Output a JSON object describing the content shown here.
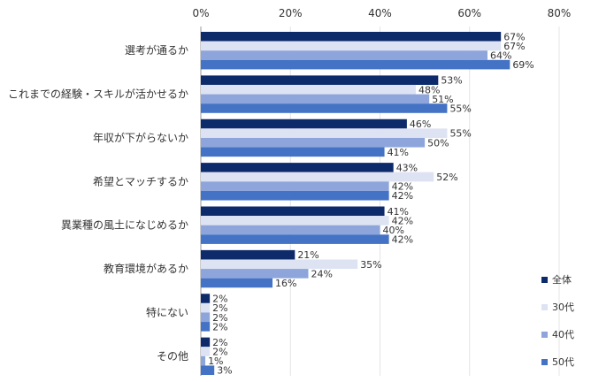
{
  "chart_data": {
    "type": "bar",
    "orientation": "horizontal",
    "categories": [
      "選考が通るか",
      "これまでの経験・スキルが活かせるか",
      "年収が下がらないか",
      "希望とマッチするか",
      "異業種の風土になじめるか",
      "教育環境があるか",
      "特にない",
      "その他"
    ],
    "series": [
      {
        "name": "全体",
        "values": [
          67,
          53,
          46,
          43,
          41,
          21,
          2,
          2
        ],
        "color": "#0d2a6b"
      },
      {
        "name": "30代",
        "values": [
          67,
          48,
          55,
          52,
          42,
          35,
          2,
          2
        ],
        "color": "#dde3f2"
      },
      {
        "name": "40代",
        "values": [
          64,
          51,
          50,
          42,
          40,
          24,
          2,
          1
        ],
        "color": "#8ea5dc"
      },
      {
        "name": "50代",
        "values": [
          69,
          55,
          41,
          42,
          42,
          16,
          2,
          3
        ],
        "color": "#4472c4"
      }
    ],
    "xlim": [
      0,
      80
    ],
    "ticks": [
      "0%",
      "20%",
      "40%",
      "60%",
      "80%"
    ],
    "value_suffix": "%",
    "legend_position": "bottom-right",
    "grid": true
  }
}
